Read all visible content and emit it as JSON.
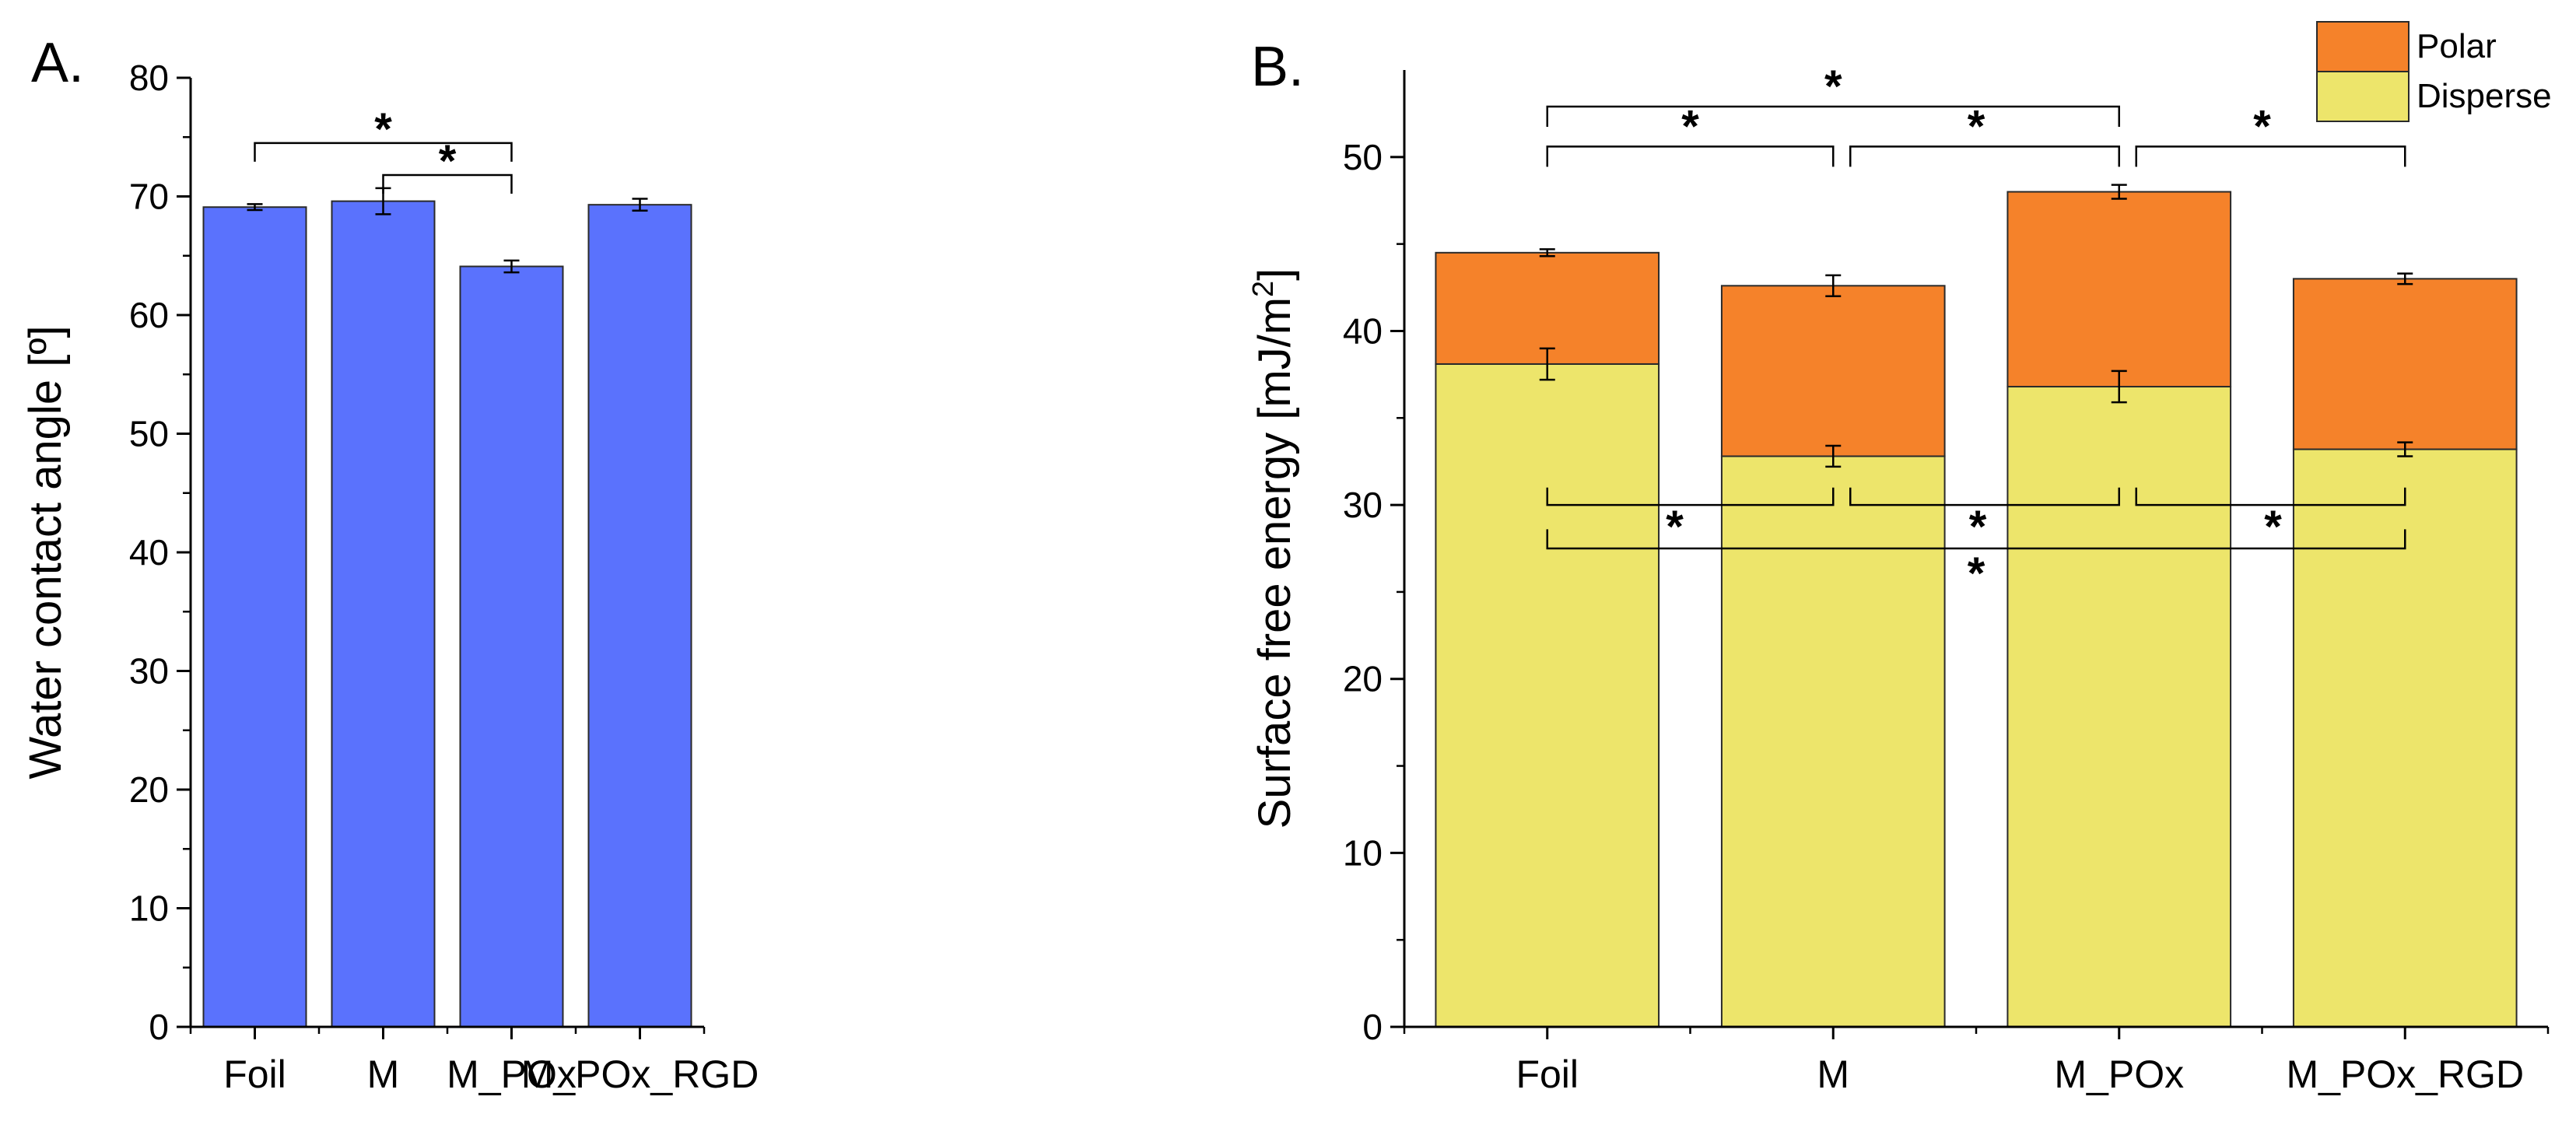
{
  "chart_data": [
    {
      "panel": "A.",
      "type": "bar",
      "categories": [
        "Foil",
        "M",
        "M_POx",
        "M_POx_RGD"
      ],
      "series": [
        {
          "name": "Water contact angle",
          "values": [
            69.1,
            69.6,
            64.1,
            69.3
          ],
          "errors": [
            0.25,
            1.1,
            0.5,
            0.5
          ],
          "color": "#5a72fd"
        }
      ],
      "xlabel": "",
      "ylabel": "Water contact angle [º]",
      "ylim": [
        0,
        80
      ],
      "yticks": [
        0,
        10,
        20,
        30,
        40,
        50,
        60,
        70,
        80
      ],
      "grid": false,
      "significance": [
        {
          "from": 0,
          "to": 2,
          "label": "*"
        },
        {
          "from": 1,
          "to": 2,
          "label": "*"
        }
      ]
    },
    {
      "panel": "B.",
      "type": "bar",
      "stacked": true,
      "categories": [
        "Foil",
        "M",
        "M_POx",
        "M_POx_RGD"
      ],
      "series": [
        {
          "name": "Disperse",
          "values": [
            38.1,
            32.8,
            36.8,
            33.2
          ],
          "errors": [
            0.9,
            0.6,
            0.9,
            0.4
          ],
          "color": "#ede56b"
        },
        {
          "name": "Polar",
          "values": [
            6.4,
            9.8,
            11.2,
            9.8
          ],
          "errors": [
            0.2,
            0.6,
            0.4,
            0.3
          ],
          "color": "#f5822a"
        }
      ],
      "totals": [
        44.5,
        42.6,
        48.0,
        43.0
      ],
      "xlabel": "",
      "ylabel": "Surface free energy [mJ/m²]",
      "ylim": [
        0,
        55
      ],
      "yticks": [
        0,
        10,
        20,
        30,
        40,
        50
      ],
      "grid": false,
      "legend": {
        "position": "top-right",
        "entries": [
          "Polar",
          "Disperse"
        ]
      },
      "significance_polar": [
        {
          "from": 0,
          "to": 1,
          "label": "*"
        },
        {
          "from": 1,
          "to": 2,
          "label": "*"
        },
        {
          "from": 2,
          "to": 3,
          "label": "*"
        },
        {
          "from": 0,
          "to": 2,
          "label": "*"
        }
      ],
      "significance_disperse": [
        {
          "from": 0,
          "to": 1,
          "label": "*"
        },
        {
          "from": 1,
          "to": 2,
          "label": "*"
        },
        {
          "from": 2,
          "to": 3,
          "label": "*"
        },
        {
          "from": 0,
          "to": 3,
          "label": "*"
        }
      ]
    }
  ]
}
